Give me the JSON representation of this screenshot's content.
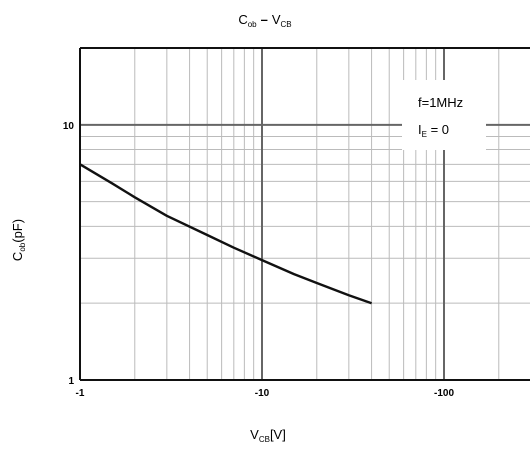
{
  "chart_data": {
    "type": "line",
    "title": {
      "a_main": "C",
      "a_sub": "ob",
      "sep": "–",
      "b_main": "V",
      "b_sub": "CB"
    },
    "xlabel": {
      "main": "V",
      "sub": "CB",
      "rest": "[V]"
    },
    "ylabel": {
      "main": "C",
      "sub": "ob",
      "rest": "(pF)"
    },
    "x_scale": "log",
    "y_scale": "log",
    "x_direction": "negative",
    "xlim": [
      -1,
      -300
    ],
    "ylim": [
      1,
      20
    ],
    "x_ticks": [
      {
        "value": -1,
        "label": "-1"
      },
      {
        "value": -10,
        "label": "-10"
      },
      {
        "value": -100,
        "label": "-100"
      }
    ],
    "y_ticks": [
      {
        "value": 1,
        "label": "1"
      },
      {
        "value": 10,
        "label": "10"
      }
    ],
    "grid": true,
    "annotations": [
      {
        "text": "f=1MHz"
      },
      {
        "main": "I",
        "sub": "E",
        "rest": " = 0"
      }
    ],
    "series": [
      {
        "x": [
          -1,
          -1.5,
          -2,
          -3,
          -5,
          -7,
          -10,
          -15,
          -20,
          -30,
          -40
        ],
        "y": [
          7.0,
          5.9,
          5.2,
          4.4,
          3.7,
          3.3,
          2.95,
          2.6,
          2.4,
          2.15,
          2.0
        ]
      }
    ]
  }
}
